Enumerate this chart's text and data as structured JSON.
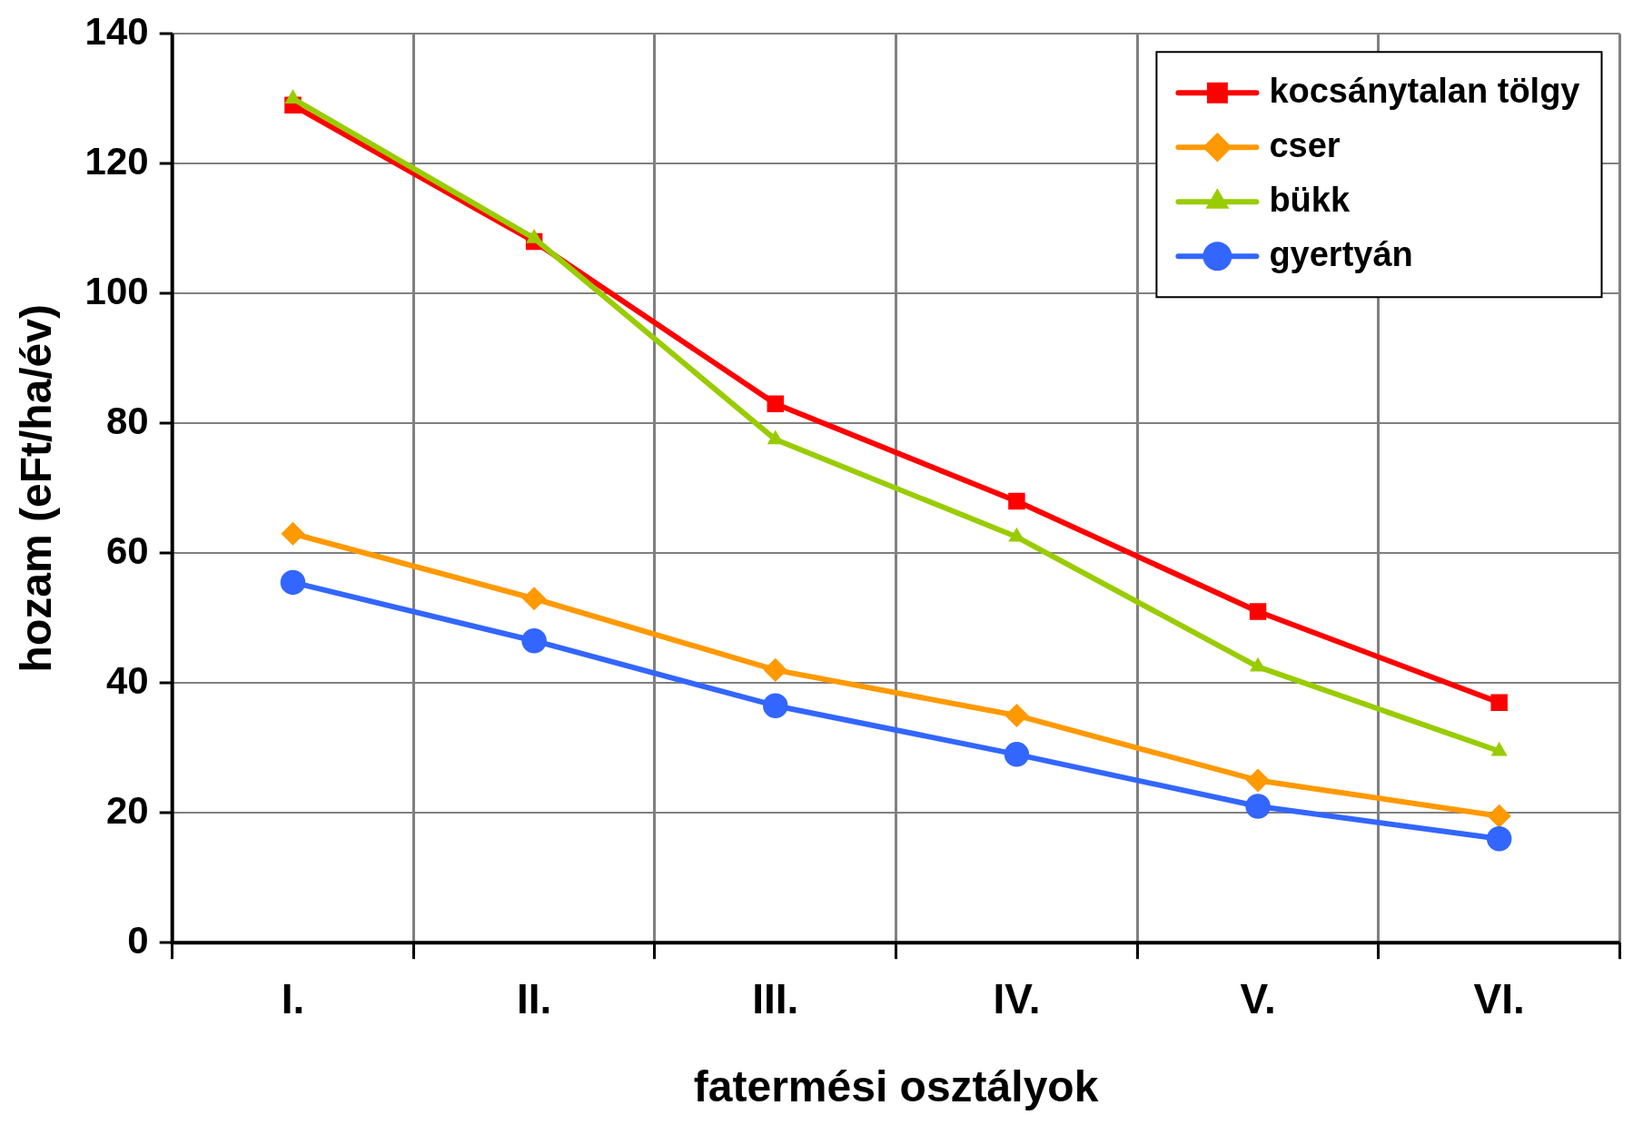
{
  "chart_data": {
    "type": "line",
    "xlabel": "fatermési osztályok",
    "ylabel": "hozam (eFt/ha/év)",
    "categories": [
      "I.",
      "II.",
      "III.",
      "IV.",
      "V.",
      "VI."
    ],
    "series": [
      {
        "name": "kocsánytalan tölgy",
        "color": "#ff0000",
        "marker": "square",
        "values": [
          129,
          108,
          83,
          68,
          51,
          37
        ]
      },
      {
        "name": "cser",
        "color": "#ff9900",
        "marker": "diamond",
        "values": [
          63,
          53,
          42,
          35,
          25,
          19.5
        ]
      },
      {
        "name": "bükk",
        "color": "#99cc00",
        "marker": "triangle",
        "values": [
          130,
          108.5,
          77.5,
          62.5,
          42.5,
          29.5
        ]
      },
      {
        "name": "gyertyán",
        "color": "#3366ff",
        "marker": "circle",
        "values": [
          55.5,
          46.5,
          36.5,
          29,
          21,
          16
        ]
      }
    ],
    "ylim": [
      0,
      140
    ],
    "yticks": [
      0,
      20,
      40,
      60,
      80,
      100,
      120,
      140
    ],
    "grid": true,
    "legend": "top right",
    "line_style": "solid"
  }
}
